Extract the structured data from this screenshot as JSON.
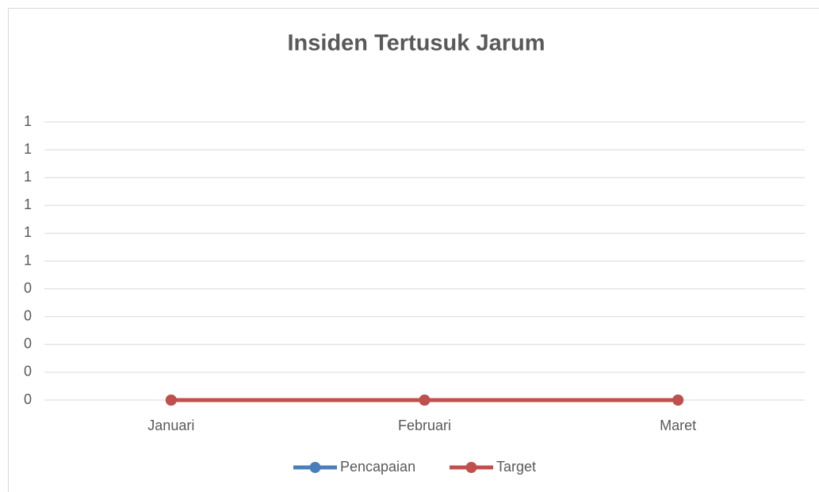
{
  "chart_data": {
    "type": "line",
    "title": "Insiden Tertusuk Jarum",
    "categories": [
      "Januari",
      "Februari",
      "Maret"
    ],
    "series": [
      {
        "name": "Pencapaian",
        "color": "#4a7ebb",
        "values": [
          0,
          0,
          0
        ]
      },
      {
        "name": "Target",
        "color": "#c0504d",
        "values": [
          0,
          0,
          0
        ]
      }
    ],
    "ylim": [
      0,
      1
    ],
    "yticks": [
      0,
      {
        "value": 0.1,
        "label": "0"
      },
      {
        "value": 0.2,
        "label": "0"
      },
      {
        "value": 0.3,
        "label": "0"
      },
      {
        "value": 0.4,
        "label": "0"
      },
      {
        "value": 0.5,
        "label": "1"
      },
      {
        "value": 0.6,
        "label": "1"
      },
      {
        "value": 0.7,
        "label": "1"
      },
      {
        "value": 0.8,
        "label": "1"
      },
      {
        "value": 0.9,
        "label": "1"
      },
      1
    ],
    "grid": true,
    "legend": "bottom"
  }
}
